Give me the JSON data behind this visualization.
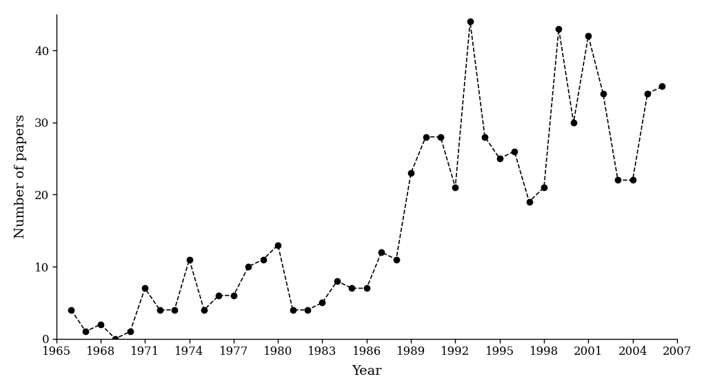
{
  "years": [
    1966,
    1967,
    1968,
    1969,
    1970,
    1971,
    1972,
    1973,
    1974,
    1975,
    1976,
    1977,
    1978,
    1979,
    1980,
    1981,
    1982,
    1983,
    1984,
    1985,
    1986,
    1987,
    1988,
    1989,
    1990,
    1991,
    1992,
    1993,
    1994,
    1995,
    1996,
    1997,
    1998,
    1999,
    2000,
    2001,
    2002,
    2003,
    2004,
    2005,
    2006
  ],
  "values": [
    4,
    1,
    2,
    0,
    1,
    7,
    4,
    4,
    11,
    4,
    6,
    6,
    10,
    11,
    13,
    4,
    4,
    5,
    8,
    7,
    7,
    12,
    11,
    23,
    28,
    28,
    21,
    44,
    28,
    25,
    26,
    19,
    21,
    43,
    30,
    42,
    34,
    22,
    22,
    34,
    35
  ],
  "xlabel": "Year",
  "ylabel": "Number of papers",
  "xlim": [
    1965,
    2007
  ],
  "ylim": [
    0,
    45
  ],
  "xticks": [
    1965,
    1968,
    1971,
    1974,
    1977,
    1980,
    1983,
    1986,
    1989,
    1992,
    1995,
    1998,
    2001,
    2004,
    2007
  ],
  "yticks": [
    0,
    10,
    20,
    30,
    40
  ],
  "line_color": "black",
  "marker": "o",
  "marker_size": 6,
  "marker_facecolor": "black",
  "line_style": "--",
  "line_width": 1.2,
  "background_color": "white",
  "tick_fontsize": 12,
  "label_fontsize": 14
}
